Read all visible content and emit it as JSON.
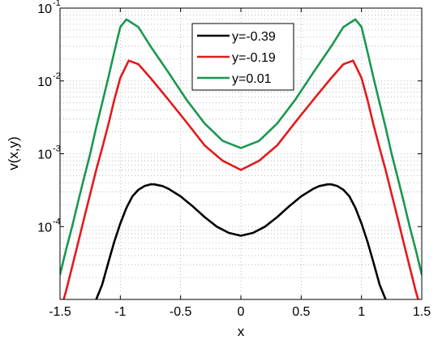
{
  "chart_data": {
    "type": "line",
    "title": "",
    "xlabel": "x",
    "ylabel": "v(x,y)",
    "xlim": [
      -1.5,
      1.5
    ],
    "ylim": [
      1e-05,
      0.1
    ],
    "y_scale": "log",
    "grid": true,
    "legend_position": "top-center",
    "x_ticks": [
      -1.5,
      -1,
      -0.5,
      0,
      0.5,
      1,
      1.5
    ],
    "x_tick_labels": [
      "-1.5",
      "-1",
      "-0.5",
      "0",
      "0.5",
      "1",
      "1.5"
    ],
    "y_ticks": [
      0.0001,
      0.001,
      0.01,
      0.1
    ],
    "y_tick_labels": [
      {
        "base": "10",
        "exp": "-4"
      },
      {
        "base": "10",
        "exp": "-3"
      },
      {
        "base": "10",
        "exp": "-2"
      },
      {
        "base": "10",
        "exp": "-1"
      }
    ],
    "series": [
      {
        "name": "y=-0.39",
        "color": "#000000",
        "x": [
          -1.2,
          -1.15,
          -1.1,
          -1.05,
          -1.0,
          -0.95,
          -0.9,
          -0.85,
          -0.8,
          -0.75,
          -0.72,
          -0.65,
          -0.6,
          -0.5,
          -0.4,
          -0.3,
          -0.2,
          -0.1,
          0.0,
          0.1,
          0.2,
          0.3,
          0.4,
          0.5,
          0.6,
          0.65,
          0.72,
          0.75,
          0.8,
          0.85,
          0.9,
          0.95,
          1.0,
          1.05,
          1.1,
          1.15,
          1.2
        ],
        "y": [
          1e-05,
          1.6e-05,
          3.2e-05,
          6.2e-05,
          0.00011,
          0.00018,
          0.00026,
          0.00032,
          0.00036,
          0.00038,
          0.00038,
          0.00036,
          0.00033,
          0.00026,
          0.00019,
          0.000135,
          0.0001,
          8.2e-05,
          7.5e-05,
          8.2e-05,
          0.0001,
          0.000135,
          0.00019,
          0.00026,
          0.00033,
          0.00036,
          0.00038,
          0.00038,
          0.00036,
          0.00032,
          0.00026,
          0.00018,
          0.00011,
          6.2e-05,
          3.2e-05,
          1.6e-05,
          1e-05
        ]
      },
      {
        "name": "y=-0.19",
        "color": "#e31a1c",
        "x": [
          -1.47,
          -1.45,
          -1.4,
          -1.35,
          -1.3,
          -1.25,
          -1.2,
          -1.15,
          -1.1,
          -1.05,
          -1.0,
          -0.93,
          -0.85,
          -0.75,
          -0.6,
          -0.45,
          -0.3,
          -0.15,
          0.0,
          0.15,
          0.3,
          0.45,
          0.6,
          0.75,
          0.85,
          0.93,
          1.0,
          1.05,
          1.1,
          1.15,
          1.2,
          1.25,
          1.3,
          1.35,
          1.4,
          1.45,
          1.47
        ],
        "y": [
          1e-05,
          1.3e-05,
          2.8e-05,
          6e-05,
          0.00013,
          0.00028,
          0.0006,
          0.0012,
          0.0025,
          0.0055,
          0.011,
          0.019,
          0.017,
          0.011,
          0.0055,
          0.0027,
          0.0013,
          0.0008,
          0.0006,
          0.0008,
          0.0013,
          0.0027,
          0.0055,
          0.011,
          0.017,
          0.019,
          0.011,
          0.0055,
          0.0025,
          0.0012,
          0.0006,
          0.00028,
          0.00013,
          6e-05,
          2.8e-05,
          1.3e-05,
          1e-05
        ]
      },
      {
        "name": "y=0.01",
        "color": "#1a9850",
        "x": [
          -1.5,
          -1.45,
          -1.4,
          -1.35,
          -1.3,
          -1.25,
          -1.2,
          -1.15,
          -1.1,
          -1.05,
          -1.0,
          -0.95,
          -0.85,
          -0.75,
          -0.6,
          -0.45,
          -0.3,
          -0.15,
          0.0,
          0.15,
          0.3,
          0.45,
          0.6,
          0.75,
          0.85,
          0.95,
          1.0,
          1.05,
          1.1,
          1.15,
          1.2,
          1.25,
          1.3,
          1.35,
          1.4,
          1.45,
          1.5
        ],
        "y": [
          2.2e-05,
          4.8e-05,
          0.0001,
          0.00022,
          0.00047,
          0.001,
          0.0023,
          0.005,
          0.011,
          0.025,
          0.055,
          0.07,
          0.055,
          0.03,
          0.013,
          0.0055,
          0.0026,
          0.0015,
          0.0012,
          0.0015,
          0.0026,
          0.0055,
          0.013,
          0.03,
          0.055,
          0.07,
          0.055,
          0.025,
          0.011,
          0.005,
          0.0023,
          0.001,
          0.00047,
          0.00022,
          0.0001,
          4.8e-05,
          2.2e-05
        ]
      }
    ]
  }
}
